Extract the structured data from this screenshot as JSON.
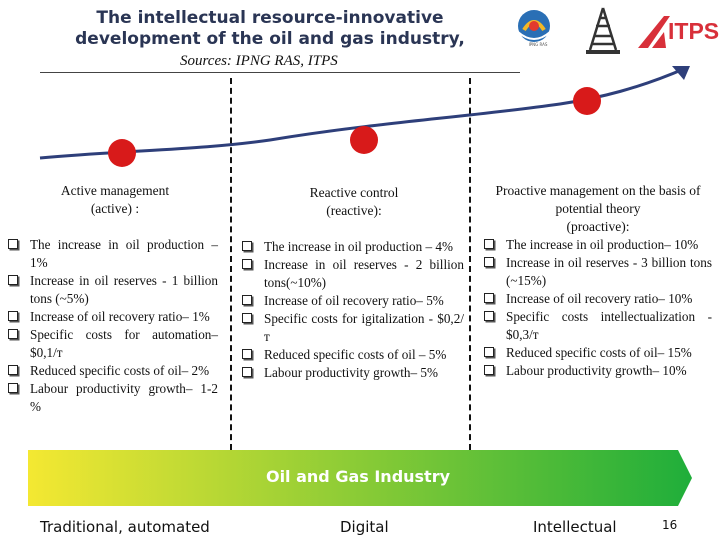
{
  "header": {
    "title_line1": "The intellectual resource-innovative",
    "title_line2": "development of the oil and gas industry,",
    "sources": "Sources: IPNG RAS, ITPS"
  },
  "logos": [
    {
      "icon": "ipng-ras-logo",
      "caption": "IPNG RAS"
    },
    {
      "icon": "oil-derrick-logo"
    },
    {
      "icon": "itps-logo",
      "text": "ITPS",
      "color": "#d8303a"
    }
  ],
  "columns": [
    {
      "heading_line1": "Active management",
      "heading_line2": "(active) :",
      "items": [
        "The increase in oil production – 1%",
        "Increase in oil reserves - 1 billion tons (~5%)",
        "Increase of oil recovery ratio– 1%",
        "Specific costs for automation– $0,1/т",
        "Reduced specific costs of oil– 2%",
        "Labour productivity growth– 1-2 %"
      ]
    },
    {
      "heading_line1": "Reactive control",
      "heading_line2": "(reactive):",
      "items": [
        "The increase in oil production – 4%",
        "Increase in oil reserves - 2 billion tons(~10%)",
        "Increase of oil recovery ratio– 5%",
        "Specific costs for igitalization - $0,2/т",
        "Reduced specific costs of oil – 5%",
        "Labour productivity growth– 5%"
      ]
    },
    {
      "heading_line1": "Proactive management on the basis of",
      "heading_line2": "potential theory",
      "heading_line3": "(proactive):",
      "items": [
        "The increase in oil production– 10%",
        "Increase in oil reserves - 3 billion tons (~15%)",
        "Increase of oil recovery ratio– 10%",
        "Specific costs intellectualization - $0,3/т",
        "Reduced specific costs of oil– 15%",
        "Labour productivity growth– 10%"
      ]
    }
  ],
  "band": {
    "label": "Oil and Gas Industry",
    "gradient_start": "#f4e832",
    "gradient_end": "#1fae3a"
  },
  "stages": [
    "Traditional, automated",
    "Digital",
    "Intellectual"
  ],
  "page_number": "16",
  "colors": {
    "curve": "#2e3f7a",
    "dot": "#d81a1a"
  }
}
